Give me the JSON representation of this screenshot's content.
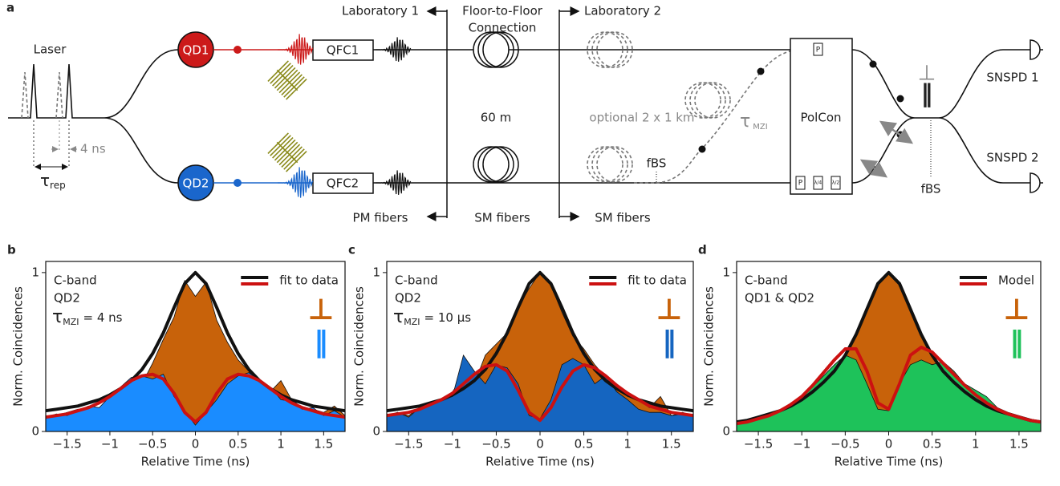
{
  "diagram": {
    "panel_label": "a",
    "laser": "Laser",
    "pulse_period": {
      "symbol": "τ",
      "subscript": "rep"
    },
    "delay": "4 ns",
    "qd1": "QD1",
    "qd2": "QD2",
    "qfc1": "QFC1",
    "qfc2": "QFC2",
    "lab1": "Laboratory 1",
    "connection": [
      "Floor-to-Floor",
      "Connection"
    ],
    "lab2": "Laboratory 2",
    "fibers": [
      "PM fibers",
      "SM fibers",
      "SM fibers"
    ],
    "fiber_length": "60 m",
    "optional": "optional 2 x 1 km",
    "fbs_mzi": "fBS",
    "mzi_delay": {
      "symbol": "τ",
      "subscript": "MZI"
    },
    "polcon": "PolCon",
    "polarizer": "P",
    "waveplates": [
      "P",
      "λ/4",
      "λ/2"
    ],
    "coupler_symbols": [
      "⊥",
      "‖"
    ],
    "fbs_out": "fBS",
    "detectors": [
      "SNSPD 1",
      "SNSPD 2"
    ]
  },
  "chart_data": [
    {
      "type": "area",
      "panel_label": "b",
      "xlabel": "Relative Time (ns)",
      "ylabel": "Norm. Coincidences",
      "annotations": [
        "C-band",
        "QD2"
      ],
      "delay_label": {
        "symbol": "τ",
        "subscript": "MZI",
        "value": "= 4 ns"
      },
      "fit_label": "fit to data",
      "xlim": [
        -1.75,
        1.75
      ],
      "ylim": [
        0,
        1.07
      ],
      "xticks": [
        {
          "value": -1.5,
          "label": "−1.5"
        },
        {
          "value": -1,
          "label": "−1"
        },
        {
          "value": -0.5,
          "label": "−0.5"
        },
        0,
        0.5,
        1,
        1.5
      ],
      "yticks": [
        0,
        1
      ],
      "x": [
        -1.75,
        -1.625,
        -1.5,
        -1.375,
        -1.25,
        -1.125,
        -1,
        -0.875,
        -0.75,
        -0.625,
        -0.5,
        -0.375,
        -0.25,
        -0.125,
        0,
        0.125,
        0.25,
        0.375,
        0.5,
        0.625,
        0.75,
        0.875,
        1,
        1.125,
        1.25,
        1.375,
        1.5,
        1.625,
        1.75
      ],
      "series": [
        {
          "name": "⊥",
          "style": "area",
          "color": "#c8620a",
          "values": [
            0.09,
            0.1,
            0.12,
            0.14,
            0.14,
            0.12,
            0.17,
            0.2,
            0.32,
            0.3,
            0.43,
            0.58,
            0.72,
            0.95,
            0.85,
            0.94,
            0.7,
            0.56,
            0.45,
            0.38,
            0.27,
            0.25,
            0.32,
            0.2,
            0.15,
            0.14,
            0.12,
            0.16,
            0.1
          ]
        },
        {
          "name": "‖",
          "style": "area",
          "color": "#1a8cff",
          "values": [
            0.09,
            0.11,
            0.1,
            0.13,
            0.16,
            0.15,
            0.22,
            0.28,
            0.34,
            0.35,
            0.33,
            0.36,
            0.22,
            0.13,
            0.04,
            0.12,
            0.2,
            0.3,
            0.35,
            0.37,
            0.32,
            0.28,
            0.2,
            0.19,
            0.14,
            0.15,
            0.1,
            0.13,
            0.09
          ]
        },
        {
          "style": "line",
          "color": "#111111",
          "values": [
            0.13,
            0.14,
            0.15,
            0.16,
            0.18,
            0.2,
            0.23,
            0.27,
            0.32,
            0.39,
            0.49,
            0.62,
            0.78,
            0.93,
            1.0,
            0.93,
            0.78,
            0.62,
            0.49,
            0.39,
            0.32,
            0.27,
            0.23,
            0.2,
            0.18,
            0.16,
            0.15,
            0.14,
            0.13
          ]
        },
        {
          "style": "line",
          "color": "#cc1111",
          "values": [
            0.09,
            0.1,
            0.11,
            0.13,
            0.15,
            0.18,
            0.22,
            0.27,
            0.32,
            0.35,
            0.36,
            0.33,
            0.24,
            0.12,
            0.06,
            0.12,
            0.24,
            0.33,
            0.36,
            0.35,
            0.32,
            0.27,
            0.22,
            0.18,
            0.15,
            0.13,
            0.11,
            0.1,
            0.09
          ]
        }
      ]
    },
    {
      "type": "area",
      "panel_label": "c",
      "xlabel": "Relative Time (ns)",
      "ylabel": "Norm. Coincidences",
      "annotations": [
        "C-band",
        "QD2"
      ],
      "delay_label": {
        "symbol": "τ",
        "subscript": "MZI",
        "value": "= 10 µs"
      },
      "fit_label": "fit to data",
      "xlim": [
        -1.75,
        1.75
      ],
      "ylim": [
        0,
        1.07
      ],
      "xticks": [
        {
          "value": -1.5,
          "label": "−1.5"
        },
        {
          "value": -1,
          "label": "−1"
        },
        {
          "value": -0.5,
          "label": "−0.5"
        },
        0,
        0.5,
        1,
        1.5
      ],
      "yticks": [
        0,
        1
      ],
      "x": [
        -1.75,
        -1.625,
        -1.5,
        -1.375,
        -1.25,
        -1.125,
        -1,
        -0.875,
        -0.75,
        -0.625,
        -0.5,
        -0.375,
        -0.25,
        -0.125,
        0,
        0.125,
        0.25,
        0.375,
        0.5,
        0.625,
        0.75,
        0.875,
        1,
        1.125,
        1.25,
        1.375,
        1.5,
        1.625,
        1.75
      ],
      "series": [
        {
          "name": "⊥",
          "style": "area",
          "color": "#c8620a",
          "values": [
            0.1,
            0.12,
            0.1,
            0.15,
            0.12,
            0.2,
            0.25,
            0.35,
            0.3,
            0.48,
            0.55,
            0.62,
            0.78,
            0.9,
            1.0,
            0.92,
            0.75,
            0.6,
            0.52,
            0.42,
            0.34,
            0.3,
            0.22,
            0.2,
            0.15,
            0.22,
            0.1,
            0.12,
            0.1
          ]
        },
        {
          "name": "‖",
          "style": "area",
          "color": "#1565c0",
          "values": [
            0.1,
            0.12,
            0.09,
            0.15,
            0.18,
            0.2,
            0.22,
            0.48,
            0.38,
            0.3,
            0.42,
            0.4,
            0.3,
            0.1,
            0.08,
            0.2,
            0.42,
            0.46,
            0.42,
            0.3,
            0.35,
            0.25,
            0.2,
            0.14,
            0.12,
            0.12,
            0.1,
            0.11,
            0.1
          ]
        },
        {
          "style": "line",
          "color": "#111111",
          "values": [
            0.13,
            0.14,
            0.15,
            0.16,
            0.18,
            0.2,
            0.23,
            0.27,
            0.32,
            0.39,
            0.49,
            0.62,
            0.78,
            0.93,
            1.0,
            0.93,
            0.78,
            0.62,
            0.49,
            0.39,
            0.32,
            0.27,
            0.23,
            0.2,
            0.18,
            0.16,
            0.15,
            0.14,
            0.13
          ]
        },
        {
          "style": "line",
          "color": "#cc1111",
          "values": [
            0.1,
            0.11,
            0.12,
            0.14,
            0.17,
            0.2,
            0.24,
            0.3,
            0.36,
            0.41,
            0.42,
            0.38,
            0.26,
            0.12,
            0.07,
            0.15,
            0.28,
            0.38,
            0.42,
            0.4,
            0.35,
            0.29,
            0.24,
            0.2,
            0.16,
            0.14,
            0.12,
            0.11,
            0.1
          ]
        }
      ]
    },
    {
      "type": "area",
      "panel_label": "d",
      "xlabel": "Relative Time (ns)",
      "ylabel": "Norm. Coincidences",
      "annotations": [
        "C-band",
        "QD1 & QD2"
      ],
      "fit_label": "Model",
      "xlim": [
        -1.75,
        1.75
      ],
      "ylim": [
        0,
        1.07
      ],
      "xticks": [
        {
          "value": -1.5,
          "label": "−1.5"
        },
        {
          "value": -1,
          "label": "−1"
        },
        {
          "value": -0.5,
          "label": "−0.5"
        },
        0,
        0.5,
        1,
        1.5
      ],
      "yticks": [
        0,
        1
      ],
      "x": [
        -1.75,
        -1.625,
        -1.5,
        -1.375,
        -1.25,
        -1.125,
        -1,
        -0.875,
        -0.75,
        -0.625,
        -0.5,
        -0.375,
        -0.25,
        -0.125,
        0,
        0.125,
        0.25,
        0.375,
        0.5,
        0.625,
        0.75,
        0.875,
        1,
        1.125,
        1.25,
        1.375,
        1.5,
        1.625,
        1.75
      ],
      "series": [
        {
          "name": "⊥",
          "style": "area",
          "color": "#c8620a",
          "values": [
            0.06,
            0.07,
            0.09,
            0.11,
            0.13,
            0.16,
            0.2,
            0.25,
            0.31,
            0.38,
            0.48,
            0.61,
            0.77,
            0.93,
            1.0,
            0.93,
            0.77,
            0.61,
            0.48,
            0.38,
            0.31,
            0.25,
            0.2,
            0.16,
            0.13,
            0.11,
            0.09,
            0.07,
            0.06
          ]
        },
        {
          "name": "‖",
          "style": "area",
          "color": "#1ec25a",
          "values": [
            0.05,
            0.06,
            0.08,
            0.1,
            0.13,
            0.18,
            0.22,
            0.28,
            0.35,
            0.42,
            0.48,
            0.45,
            0.3,
            0.14,
            0.13,
            0.3,
            0.42,
            0.45,
            0.42,
            0.44,
            0.38,
            0.3,
            0.26,
            0.22,
            0.15,
            0.12,
            0.1,
            0.08,
            0.06
          ]
        },
        {
          "style": "line",
          "color": "#111111",
          "values": [
            0.06,
            0.07,
            0.09,
            0.11,
            0.13,
            0.16,
            0.2,
            0.25,
            0.31,
            0.38,
            0.48,
            0.61,
            0.77,
            0.93,
            1.0,
            0.93,
            0.77,
            0.61,
            0.48,
            0.38,
            0.31,
            0.25,
            0.2,
            0.16,
            0.13,
            0.11,
            0.09,
            0.07,
            0.06
          ]
        },
        {
          "style": "line",
          "color": "#cc1111",
          "values": [
            0.05,
            0.06,
            0.08,
            0.1,
            0.13,
            0.17,
            0.22,
            0.29,
            0.37,
            0.45,
            0.52,
            0.52,
            0.38,
            0.18,
            0.14,
            0.3,
            0.48,
            0.53,
            0.5,
            0.43,
            0.36,
            0.29,
            0.23,
            0.18,
            0.14,
            0.11,
            0.09,
            0.07,
            0.06
          ]
        }
      ]
    }
  ]
}
